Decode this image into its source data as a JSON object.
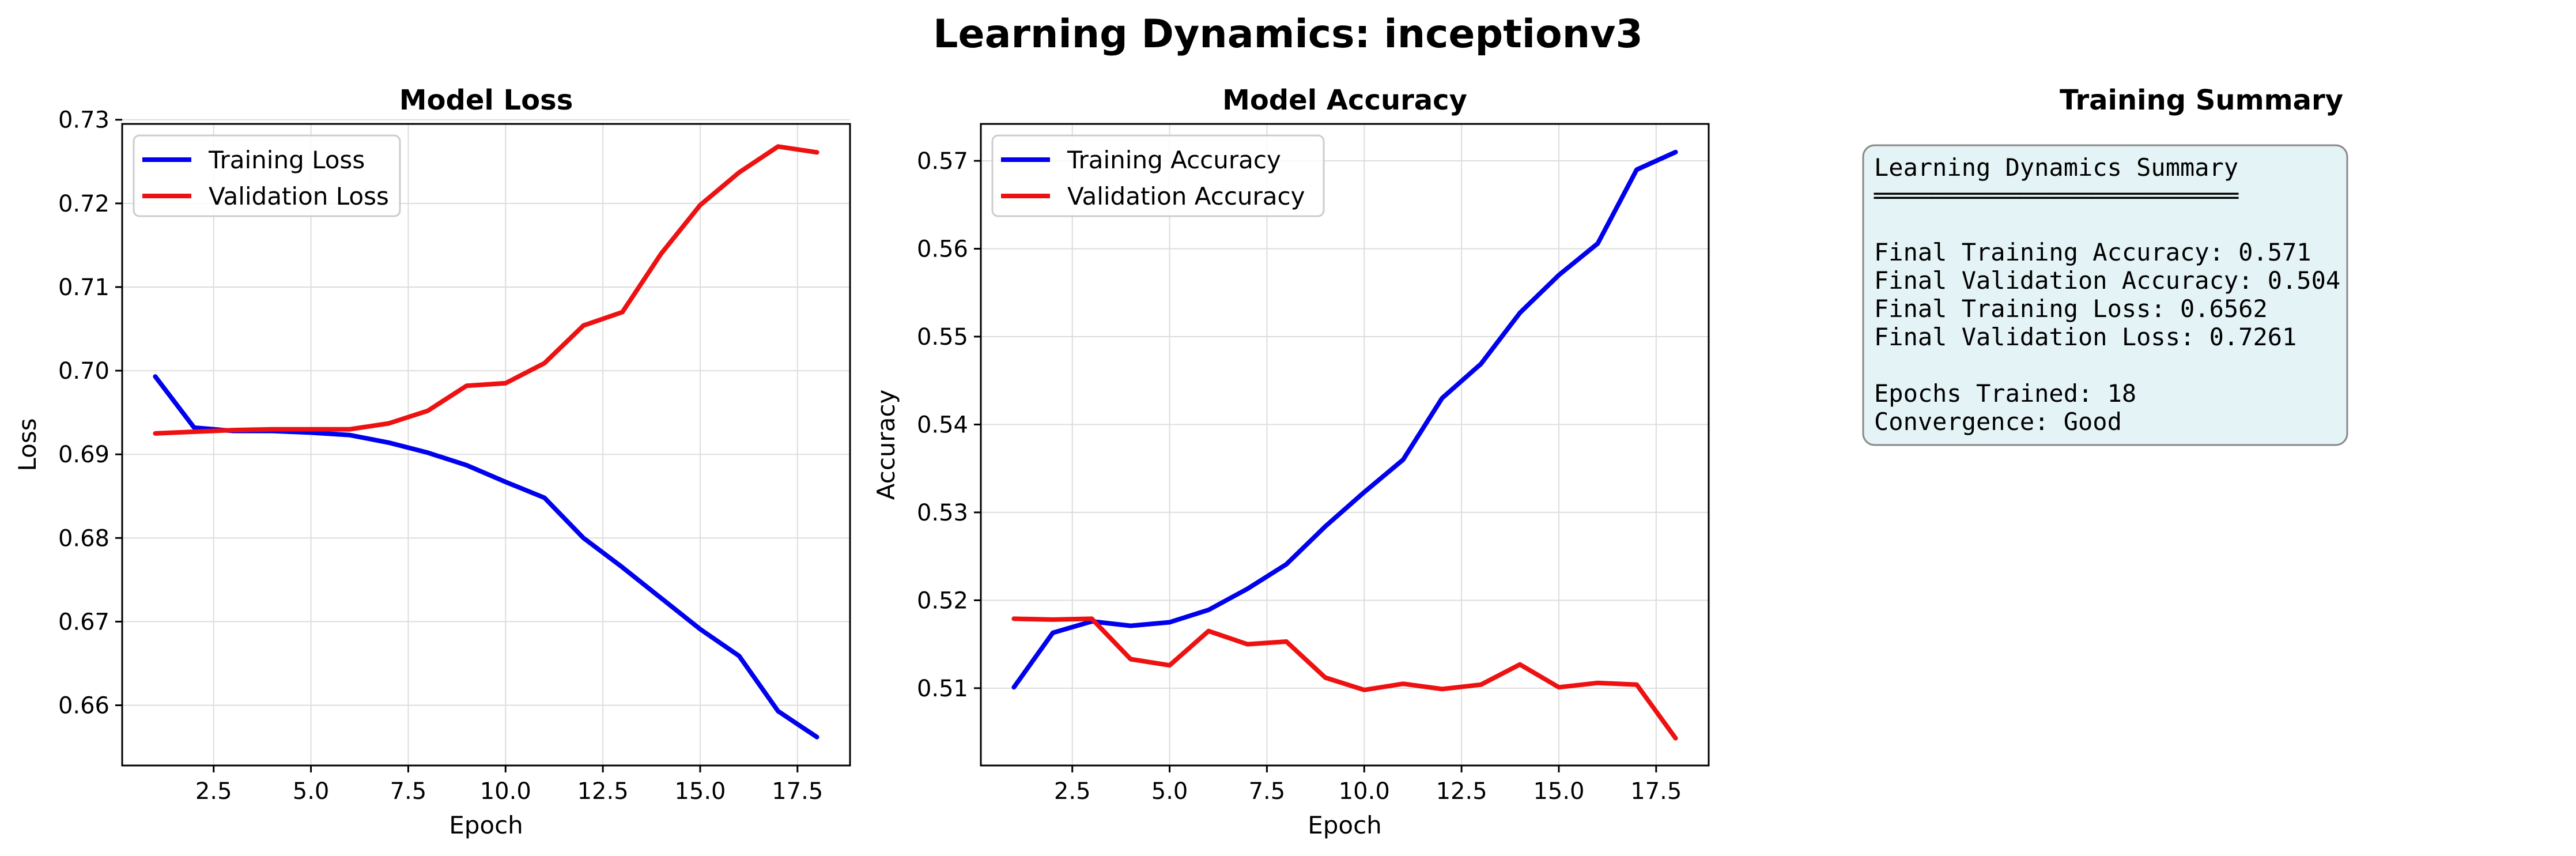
{
  "suptitle": "Learning Dynamics: inceptionv3",
  "colors": {
    "training": "#0000ee",
    "validation": "#ee1111"
  },
  "chart_data": [
    {
      "type": "line",
      "title": "Model Loss",
      "xlabel": "Epoch",
      "ylabel": "Loss",
      "xlim": [
        0.15,
        18.85
      ],
      "ylim": [
        0.6528,
        0.7295
      ],
      "xticks": [
        2.5,
        5.0,
        7.5,
        10.0,
        12.5,
        15.0,
        17.5
      ],
      "xtick_labels": [
        "2.5",
        "5.0",
        "7.5",
        "10.0",
        "12.5",
        "15.0",
        "17.5"
      ],
      "yticks": [
        0.66,
        0.67,
        0.68,
        0.69,
        0.7,
        0.71,
        0.72,
        0.73
      ],
      "ytick_labels": [
        "0.66",
        "0.67",
        "0.68",
        "0.69",
        "0.70",
        "0.71",
        "0.72",
        "0.73"
      ],
      "grid": true,
      "legend": "upper-left",
      "x": [
        1,
        2,
        3,
        4,
        5,
        6,
        7,
        8,
        9,
        10,
        11,
        12,
        13,
        14,
        15,
        16,
        17,
        18
      ],
      "series": [
        {
          "name": "Training Loss",
          "color": "#0000ee",
          "values": [
            0.6993,
            0.6932,
            0.6928,
            0.6928,
            0.6926,
            0.6923,
            0.6914,
            0.6902,
            0.6887,
            0.6867,
            0.6848,
            0.68,
            0.6765,
            0.6728,
            0.6691,
            0.6659,
            0.6593,
            0.6562
          ]
        },
        {
          "name": "Validation Loss",
          "color": "#ee1111",
          "values": [
            0.6925,
            0.6927,
            0.6929,
            0.693,
            0.693,
            0.693,
            0.6937,
            0.6952,
            0.6982,
            0.6985,
            0.7009,
            0.7054,
            0.707,
            0.714,
            0.7198,
            0.7237,
            0.7268,
            0.7261
          ]
        }
      ]
    },
    {
      "type": "line",
      "title": "Model Accuracy",
      "xlabel": "Epoch",
      "ylabel": "Accuracy",
      "xlim": [
        0.15,
        18.85
      ],
      "ylim": [
        0.5012,
        0.5742
      ],
      "xticks": [
        2.5,
        5.0,
        7.5,
        10.0,
        12.5,
        15.0,
        17.5
      ],
      "xtick_labels": [
        "2.5",
        "5.0",
        "7.5",
        "10.0",
        "12.5",
        "15.0",
        "17.5"
      ],
      "yticks": [
        0.51,
        0.52,
        0.53,
        0.54,
        0.55,
        0.56,
        0.57
      ],
      "ytick_labels": [
        "0.51",
        "0.52",
        "0.53",
        "0.54",
        "0.55",
        "0.56",
        "0.57"
      ],
      "grid": true,
      "legend": "upper-left",
      "x": [
        1,
        2,
        3,
        4,
        5,
        6,
        7,
        8,
        9,
        10,
        11,
        12,
        13,
        14,
        15,
        16,
        17,
        18
      ],
      "series": [
        {
          "name": "Training Accuracy",
          "color": "#0000ee",
          "values": [
            0.5101,
            0.5163,
            0.5176,
            0.5171,
            0.5175,
            0.5189,
            0.5213,
            0.5241,
            0.5284,
            0.5323,
            0.536,
            0.543,
            0.5469,
            0.5527,
            0.557,
            0.5606,
            0.569,
            0.571
          ]
        },
        {
          "name": "Validation Accuracy",
          "color": "#ee1111",
          "values": [
            0.5179,
            0.5178,
            0.5179,
            0.5133,
            0.5126,
            0.5165,
            0.515,
            0.5153,
            0.5112,
            0.5098,
            0.5105,
            0.5099,
            0.5104,
            0.5127,
            0.5101,
            0.5106,
            0.5104,
            0.5043
          ]
        }
      ]
    }
  ],
  "summary": {
    "title": "Training Summary",
    "lines": [
      "Learning Dynamics Summary",
      "═════════════════════════",
      "",
      "Final Training Accuracy: 0.571",
      "Final Validation Accuracy: 0.504",
      "Final Training Loss: 0.6562",
      "Final Validation Loss: 0.7261",
      "",
      "Epochs Trained: 18",
      "Convergence: Good"
    ]
  }
}
